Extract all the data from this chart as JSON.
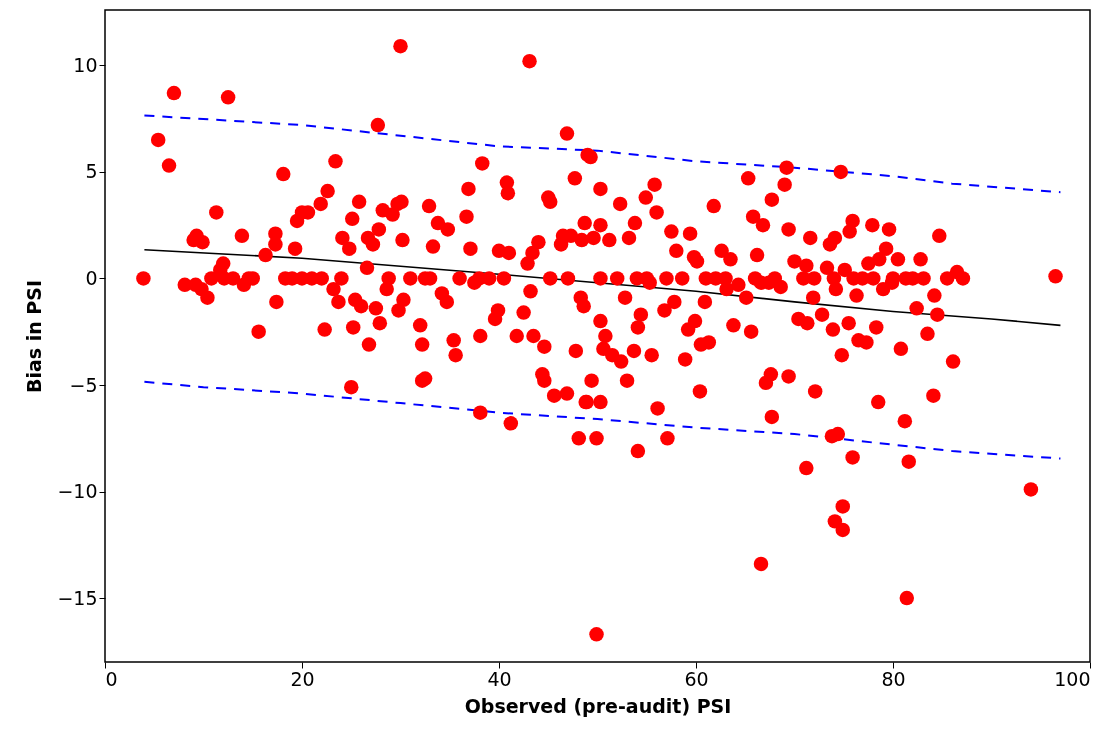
{
  "chart_data": {
    "type": "scatter",
    "xlabel": "Observed (pre-audit) PSI",
    "ylabel": "Bias in PSI",
    "xlim": [
      0,
      100
    ],
    "ylim": [
      -18,
      12.6
    ],
    "xticks": [
      0,
      20,
      40,
      60,
      80,
      100
    ],
    "yticks": [
      -15,
      -10,
      -5,
      0,
      5,
      10
    ],
    "grid": false,
    "series": [
      {
        "marker": "circle",
        "color": "#ff0000",
        "x": [
          3.9,
          5.4,
          6.5,
          7.0,
          12.5,
          30.0,
          43.1,
          27.7,
          46.9,
          49.0,
          49.3,
          96.5,
          94.0,
          81.4,
          49.9,
          66.6,
          74.9,
          74.1,
          74.9,
          75.9,
          81.6,
          71.2,
          54.1,
          57.1,
          49.9,
          48.1,
          41.2,
          38.1,
          25.0,
          32.2,
          32.5,
          81.2,
          73.8,
          74.4,
          67.7,
          78.5,
          84.1,
          56.1,
          50.3,
          48.9,
          60.4,
          9.2,
          8.1,
          9.0,
          9.3,
          9.9,
          9.8,
          10.4,
          10.8,
          11.3,
          11.7,
          12.0,
          12.1,
          13.0,
          13.9,
          14.1,
          14.6,
          15.6,
          16.3,
          17.3,
          17.3,
          17.4,
          18.1,
          18.3,
          19.0,
          19.3,
          19.5,
          20.0,
          20.6,
          21.0,
          22.0,
          21.9,
          22.3,
          22.6,
          23.2,
          23.4,
          23.7,
          24.1,
          24.8,
          25.1,
          25.2,
          25.4,
          25.8,
          26.0,
          26.6,
          26.8,
          26.7,
          27.2,
          27.5,
          27.8,
          27.9,
          28.2,
          28.6,
          28.8,
          29.2,
          29.7,
          30.1,
          29.8,
          30.3,
          30.2,
          32.0,
          32.2,
          32.5,
          32.9,
          33.3,
          33.8,
          34.2,
          34.7,
          34.8,
          35.4,
          35.6,
          36.0,
          36.7,
          36.9,
          37.1,
          37.5,
          38.3,
          38.1,
          39.0,
          39.6,
          39.9,
          40.0,
          40.5,
          40.8,
          40.9,
          41.0,
          41.8,
          42.5,
          42.9,
          43.2,
          43.4,
          43.5,
          44.0,
          44.4,
          44.6,
          44.6,
          45.0,
          45.2,
          45.2,
          45.6,
          46.3,
          46.5,
          46.9,
          47.3,
          47.8,
          47.7,
          48.3,
          48.4,
          48.6,
          48.8,
          48.7,
          49.4,
          49.6,
          50.3,
          50.3,
          50.3,
          50.3,
          50.6,
          50.8,
          51.2,
          51.5,
          52.3,
          52.4,
          52.8,
          53.0,
          53.2,
          53.7,
          53.8,
          54.0,
          54.1,
          54.4,
          54.9,
          55.3,
          55.5,
          55.8,
          56.0,
          56.8,
          57.5,
          57.8,
          58.0,
          58.6,
          58.9,
          59.2,
          59.4,
          59.9,
          59.8,
          60.1,
          60.5,
          60.9,
          61.3,
          61.8,
          62.0,
          62.6,
          63.1,
          63.5,
          63.8,
          64.3,
          65.1,
          65.3,
          65.6,
          65.8,
          66.2,
          66.8,
          66.6,
          67.1,
          67.4,
          67.6,
          67.7,
          68.6,
          69.0,
          69.2,
          69.4,
          69.4,
          70.0,
          70.4,
          70.9,
          71.2,
          71.3,
          71.6,
          71.9,
          72.1,
          72.8,
          73.3,
          73.6,
          73.9,
          74.1,
          74.2,
          74.7,
          74.8,
          75.1,
          75.5,
          75.6,
          75.9,
          76.3,
          76.5,
          76.9,
          77.3,
          77.5,
          77.9,
          78.3,
          78.6,
          79.0,
          79.3,
          79.6,
          79.9,
          80.5,
          80.8,
          81.3,
          82.4,
          82.8,
          83.1,
          83.5,
          84.2,
          84.5,
          84.7,
          85.5,
          86.1,
          86.5,
          87.1,
          15.0,
          20.0,
          24.0,
          31.0,
          33.0,
          38.0,
          47.0,
          52.0,
          55.0,
          57.0,
          61.0,
          63.0,
          66.0,
          68.0,
          72.0,
          74.0,
          76.0,
          78.0,
          80.0,
          82.0
        ],
        "values": [
          0,
          6.5,
          5.3,
          8.7,
          8.5,
          10.9,
          10.2,
          7.2,
          6.8,
          5.8,
          5.7,
          0.1,
          -9.9,
          -15.0,
          -16.7,
          -13.4,
          -10.7,
          -11.4,
          -11.8,
          -8.4,
          -8.6,
          -8.9,
          -8.1,
          -7.5,
          -7.5,
          -7.5,
          -6.8,
          -6.3,
          -5.1,
          -4.8,
          -4.7,
          -6.7,
          -7.4,
          -7.3,
          -6.5,
          -5.8,
          -5.5,
          -6.1,
          -5.8,
          -5.8,
          -5.3,
          -0.3,
          -0.3,
          1.8,
          2.0,
          1.7,
          -0.5,
          -0.9,
          0,
          3.1,
          0.4,
          0.7,
          0,
          0,
          2.0,
          -0.3,
          0,
          -2.5,
          1.1,
          1.6,
          2.1,
          -1.1,
          4.9,
          0,
          0,
          1.4,
          2.7,
          3.1,
          3.1,
          0,
          0,
          3.5,
          -2.4,
          4.1,
          -0.5,
          5.5,
          -1.1,
          1.9,
          1.4,
          2.8,
          -2.3,
          -1.0,
          3.6,
          -1.3,
          0.5,
          -3.1,
          1.9,
          1.6,
          -1.4,
          2.3,
          -2.1,
          3.2,
          -0.5,
          0,
          3.0,
          3.5,
          3.6,
          -1.5,
          -1.0,
          1.8,
          -2.2,
          -3.1,
          0,
          3.4,
          1.5,
          2.6,
          -0.7,
          -1.1,
          2.3,
          -2.9,
          -3.6,
          0,
          2.9,
          4.2,
          1.4,
          -0.2,
          5.4,
          -2.7,
          0,
          -1.9,
          -1.5,
          1.3,
          0,
          4.5,
          4.0,
          1.2,
          -2.7,
          -1.6,
          0.7,
          -0.6,
          1.2,
          -2.7,
          1.7,
          -4.5,
          -3.2,
          -4.8,
          3.8,
          3.6,
          0,
          -5.5,
          1.6,
          2.0,
          -5.4,
          2.0,
          -3.4,
          4.7,
          -0.9,
          1.8,
          -1.3,
          -5.8,
          2.6,
          -4.8,
          1.9,
          4.2,
          -2.0,
          2.5,
          0,
          -3.3,
          -2.7,
          1.8,
          -3.6,
          3.5,
          -3.9,
          -0.9,
          -4.8,
          1.9,
          -3.4,
          2.6,
          0,
          -2.3,
          -1.7,
          3.8,
          -0.2,
          -3.6,
          4.4,
          3.1,
          -1.5,
          2.2,
          -1.1,
          1.3,
          0,
          -3.8,
          -2.4,
          2.1,
          -2.0,
          1.0,
          0.8,
          -3.1,
          -1.1,
          -3.0,
          3.4,
          0,
          1.3,
          -0.5,
          0.9,
          -2.2,
          -0.3,
          -0.9,
          4.7,
          -2.5,
          2.9,
          1.1,
          2.5,
          -0.2,
          -4.9,
          -0.2,
          -4.5,
          3.7,
          -0.4,
          4.4,
          5.2,
          2.3,
          -4.6,
          0.8,
          -1.9,
          0,
          0.6,
          -2.1,
          1.9,
          -0.9,
          -5.3,
          -1.7,
          0.5,
          1.6,
          -2.4,
          1.9,
          -0.5,
          5.0,
          -3.6,
          0.4,
          -2.1,
          2.2,
          2.7,
          -0.8,
          -2.9,
          0,
          -3.0,
          0.7,
          2.5,
          -2.3,
          0.9,
          -0.5,
          1.4,
          2.3,
          -0.2,
          0.9,
          -3.3,
          0,
          -1.4,
          0.9,
          0,
          -2.6,
          -0.8,
          -1.7,
          2.0,
          0,
          -3.9,
          0.3,
          0,
          0,
          0,
          0,
          0,
          0,
          0,
          0,
          0,
          0,
          0,
          0,
          0,
          0,
          0,
          0,
          0,
          0,
          0,
          0,
          0
        ]
      },
      {
        "type": "line",
        "line_style": "solid",
        "color": "#000000",
        "x": [
          4,
          20,
          40,
          50,
          60,
          70,
          80,
          90,
          97
        ],
        "values": [
          1.35,
          0.95,
          0.2,
          -0.2,
          -0.6,
          -1.1,
          -1.55,
          -1.9,
          -2.2
        ]
      },
      {
        "type": "line",
        "line_style": "dashed",
        "color": "#0000ff",
        "x": [
          4,
          20,
          40,
          50,
          60,
          70,
          80,
          86,
          97
        ],
        "values": [
          7.65,
          7.2,
          6.2,
          6.0,
          5.5,
          5.2,
          4.8,
          4.45,
          4.05
        ]
      },
      {
        "type": "line",
        "line_style": "dashed",
        "color": "#0000ff",
        "x": [
          4,
          10,
          20,
          30,
          40,
          50,
          60,
          70,
          80,
          86,
          97
        ],
        "values": [
          -4.85,
          -5.1,
          -5.4,
          -5.85,
          -6.3,
          -6.6,
          -7.0,
          -7.3,
          -7.8,
          -8.1,
          -8.45
        ]
      }
    ]
  }
}
